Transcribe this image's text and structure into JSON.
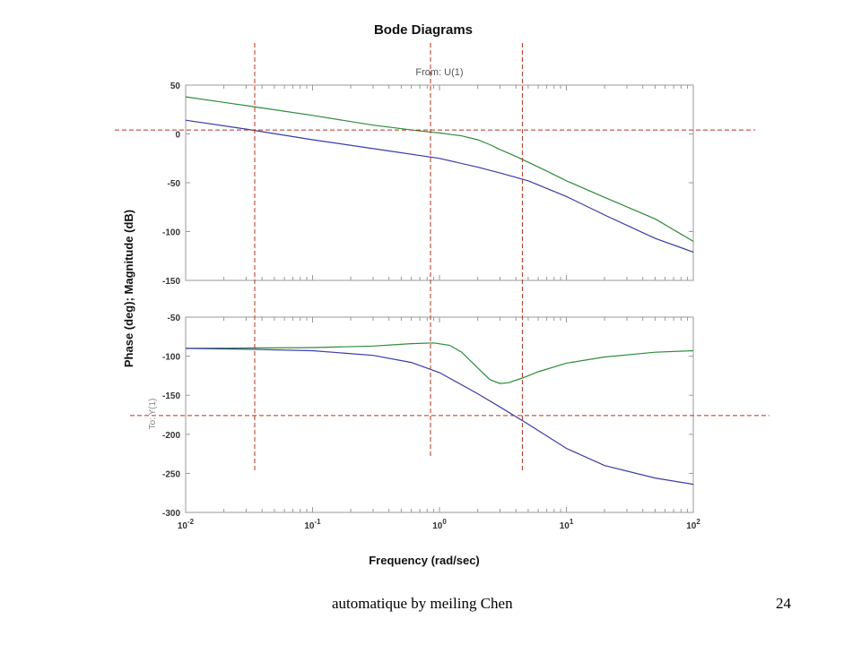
{
  "chart_data": {
    "type": "line",
    "title": "Bode Diagrams",
    "subtitle": "From: U(1)",
    "ylabel": "Phase (deg); Magnitude (dB)",
    "output_label": "To: Y(1)",
    "xlabel": "Frequency (rad/sec)",
    "x_scale": "log",
    "xlim": [
      0.01,
      100
    ],
    "x_ticks": [
      {
        "base": "10",
        "exp": "-2"
      },
      {
        "base": "10",
        "exp": "-1"
      },
      {
        "base": "10",
        "exp": "0"
      },
      {
        "base": "10",
        "exp": "1"
      },
      {
        "base": "10",
        "exp": "2"
      }
    ],
    "grid": false,
    "colors": {
      "green": "#2e8b3a",
      "blue": "#3a3aa8",
      "guides": "#b8321c"
    },
    "magnitude": {
      "ylim": [
        -150,
        50
      ],
      "y_ticks": [
        "50",
        "0",
        "-50",
        "-100",
        "-150"
      ],
      "series": [
        {
          "color": "green",
          "x": [
            0.01,
            0.03,
            0.1,
            0.3,
            0.7,
            1,
            1.5,
            2,
            2.5,
            3,
            4,
            5,
            7,
            10,
            20,
            50,
            100
          ],
          "values": [
            38,
            29,
            19,
            9,
            3,
            1,
            -2,
            -6,
            -11,
            -16,
            -23,
            -29,
            -38,
            -48,
            -65,
            -87,
            -110
          ]
        },
        {
          "color": "blue",
          "x": [
            0.01,
            0.03,
            0.1,
            0.3,
            1,
            2,
            3,
            5,
            10,
            20,
            50,
            100
          ],
          "values": [
            14,
            5,
            -6,
            -15,
            -25,
            -34,
            -40,
            -48,
            -64,
            -83,
            -107,
            -121
          ]
        }
      ],
      "guide_y": 4
    },
    "phase": {
      "ylim": [
        -300,
        -50
      ],
      "y_ticks": [
        "-50",
        "-100",
        "-150",
        "-200",
        "-250",
        "-300"
      ],
      "series": [
        {
          "color": "green",
          "x": [
            0.01,
            0.1,
            0.3,
            0.6,
            0.9,
            1.2,
            1.5,
            2,
            2.5,
            3,
            3.5,
            4.5,
            6,
            10,
            20,
            50,
            100
          ],
          "values": [
            -90,
            -89,
            -87,
            -84,
            -83,
            -86,
            -95,
            -115,
            -130,
            -135,
            -134,
            -128,
            -120,
            -109,
            -101,
            -95,
            -93
          ]
        },
        {
          "color": "blue",
          "x": [
            0.01,
            0.03,
            0.1,
            0.3,
            0.6,
            1,
            2,
            3,
            5,
            10,
            20,
            50,
            100
          ],
          "values": [
            -90,
            -91,
            -93,
            -99,
            -108,
            -121,
            -148,
            -165,
            -187,
            -218,
            -240,
            -256,
            -264
          ]
        }
      ],
      "guide_y": -176
    },
    "guide_frequencies": [
      0.035,
      0.85,
      4.5
    ]
  },
  "footer": {
    "text": "automatique by meiling Chen",
    "page_number": "24"
  }
}
